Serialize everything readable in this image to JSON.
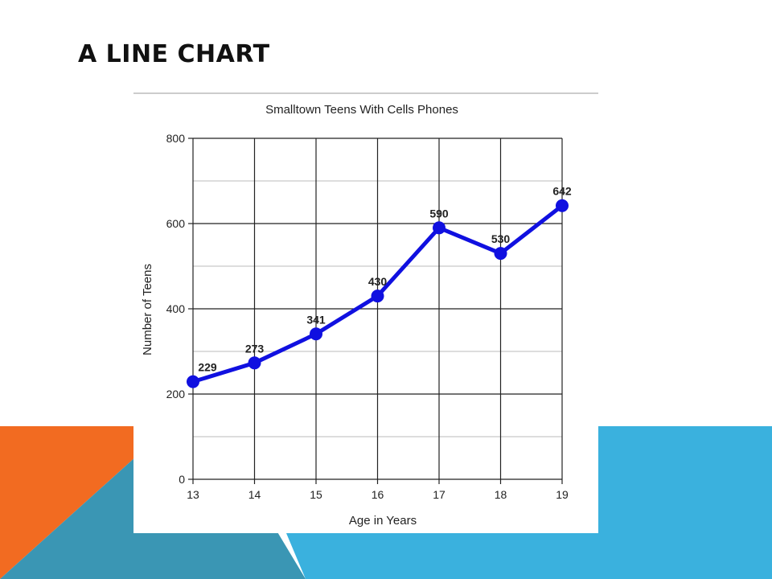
{
  "slide": {
    "title": "A LINE CHART"
  },
  "colors": {
    "accent_orange": "#F26B21",
    "accent_teal": "#3A96B4",
    "accent_blue": "#3AB1DE",
    "line": "#1010E0"
  },
  "chart_data": {
    "type": "line",
    "title": "Smalltown Teens With Cells Phones",
    "xlabel": "Age in Years",
    "ylabel": "Number of Teens",
    "x": [
      13,
      14,
      15,
      16,
      17,
      18,
      19
    ],
    "series": [
      {
        "values": [
          229,
          273,
          341,
          430,
          590,
          530,
          642
        ]
      }
    ],
    "ylim": [
      0,
      800
    ],
    "yticks": [
      0,
      200,
      400,
      600,
      800
    ],
    "grid": true,
    "data_labels": true
  }
}
